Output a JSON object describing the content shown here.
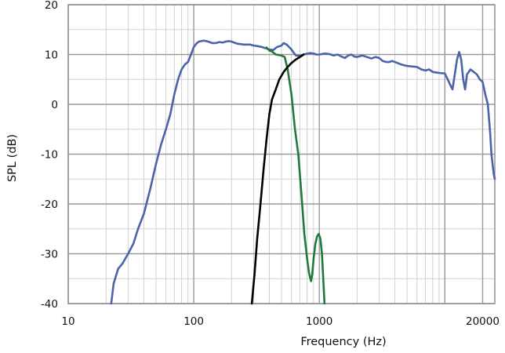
{
  "chart_data": {
    "type": "line",
    "xlabel": "Frequency (Hz)",
    "ylabel": "SPL (dB)",
    "x_scale": "log",
    "xlim": [
      10,
      25000
    ],
    "ylim": [
      -40,
      20
    ],
    "x_ticks": [
      {
        "value": 10,
        "label": "10"
      },
      {
        "value": 100,
        "label": "100"
      },
      {
        "value": 1000,
        "label": "1000"
      },
      {
        "value": 20000,
        "label": "20000"
      }
    ],
    "y_ticks": [
      {
        "value": 20,
        "label": "20"
      },
      {
        "value": 10,
        "label": "10"
      },
      {
        "value": 0,
        "label": "0"
      },
      {
        "value": -10,
        "label": "-10"
      },
      {
        "value": -20,
        "label": "-20"
      },
      {
        "value": -30,
        "label": "-30"
      },
      {
        "value": -40,
        "label": "-40"
      }
    ],
    "grid": true,
    "series": [
      {
        "color": "#4a64a8",
        "points": [
          [
            22,
            -40
          ],
          [
            23,
            -36
          ],
          [
            25,
            -33
          ],
          [
            27,
            -32
          ],
          [
            30,
            -30
          ],
          [
            33,
            -28
          ],
          [
            36,
            -25
          ],
          [
            40,
            -22
          ],
          [
            45,
            -17
          ],
          [
            50,
            -12
          ],
          [
            55,
            -8
          ],
          [
            60,
            -5
          ],
          [
            65,
            -2
          ],
          [
            70,
            2
          ],
          [
            75,
            5
          ],
          [
            80,
            7
          ],
          [
            85,
            8
          ],
          [
            90,
            8.5
          ],
          [
            95,
            10
          ],
          [
            100,
            11.5
          ],
          [
            105,
            12.2
          ],
          [
            110,
            12.6
          ],
          [
            120,
            12.8
          ],
          [
            130,
            12.6
          ],
          [
            140,
            12.3
          ],
          [
            150,
            12.3
          ],
          [
            160,
            12.5
          ],
          [
            170,
            12.4
          ],
          [
            180,
            12.6
          ],
          [
            190,
            12.7
          ],
          [
            200,
            12.6
          ],
          [
            220,
            12.2
          ],
          [
            250,
            12
          ],
          [
            280,
            12
          ],
          [
            300,
            11.8
          ],
          [
            320,
            11.7
          ],
          [
            350,
            11.5
          ],
          [
            380,
            11.2
          ],
          [
            400,
            11
          ],
          [
            430,
            10.9
          ],
          [
            460,
            11.5
          ],
          [
            500,
            11.8
          ],
          [
            520,
            12.3
          ],
          [
            550,
            12
          ],
          [
            600,
            11
          ],
          [
            650,
            9.8
          ],
          [
            700,
            9.7
          ],
          [
            750,
            10
          ],
          [
            800,
            10.2
          ],
          [
            850,
            10.3
          ],
          [
            900,
            10.2
          ],
          [
            950,
            10
          ],
          [
            1000,
            10
          ],
          [
            1100,
            10.2
          ],
          [
            1200,
            10.1
          ],
          [
            1300,
            9.8
          ],
          [
            1400,
            10
          ],
          [
            1500,
            9.6
          ],
          [
            1600,
            9.3
          ],
          [
            1700,
            9.8
          ],
          [
            1800,
            10
          ],
          [
            1900,
            9.6
          ],
          [
            2000,
            9.5
          ],
          [
            2200,
            9.8
          ],
          [
            2400,
            9.5
          ],
          [
            2600,
            9.2
          ],
          [
            2800,
            9.5
          ],
          [
            3000,
            9.3
          ],
          [
            3200,
            8.7
          ],
          [
            3400,
            8.5
          ],
          [
            3600,
            8.5
          ],
          [
            3800,
            8.7
          ],
          [
            4000,
            8.5
          ],
          [
            4500,
            8
          ],
          [
            5000,
            7.7
          ],
          [
            5500,
            7.6
          ],
          [
            6000,
            7.5
          ],
          [
            6500,
            7
          ],
          [
            7000,
            6.8
          ],
          [
            7500,
            7
          ],
          [
            8000,
            6.5
          ],
          [
            9000,
            6.3
          ],
          [
            10000,
            6.2
          ],
          [
            11000,
            4
          ],
          [
            11500,
            3
          ],
          [
            12000,
            6
          ],
          [
            12500,
            9
          ],
          [
            13000,
            10.5
          ],
          [
            13500,
            9
          ],
          [
            14000,
            5
          ],
          [
            14500,
            3
          ],
          [
            15000,
            6
          ],
          [
            16000,
            7
          ],
          [
            17000,
            6.5
          ],
          [
            18000,
            6
          ],
          [
            19000,
            5
          ],
          [
            20000,
            4.5
          ],
          [
            21000,
            2
          ],
          [
            22000,
            0
          ],
          [
            22500,
            -3
          ],
          [
            23000,
            -6
          ],
          [
            23500,
            -10
          ],
          [
            24000,
            -12
          ],
          [
            24500,
            -14
          ],
          [
            25000,
            -15
          ]
        ]
      },
      {
        "color": "#1e7a3a",
        "points": [
          [
            380,
            11.4
          ],
          [
            400,
            10.8
          ],
          [
            420,
            10.6
          ],
          [
            450,
            10
          ],
          [
            500,
            9.8
          ],
          [
            530,
            9.5
          ],
          [
            560,
            7
          ],
          [
            600,
            2
          ],
          [
            640,
            -5
          ],
          [
            680,
            -10
          ],
          [
            720,
            -18
          ],
          [
            760,
            -26
          ],
          [
            800,
            -31
          ],
          [
            830,
            -34
          ],
          [
            860,
            -35.5
          ],
          [
            880,
            -34
          ],
          [
            900,
            -31
          ],
          [
            930,
            -28
          ],
          [
            960,
            -26.5
          ],
          [
            990,
            -26
          ],
          [
            1020,
            -27
          ],
          [
            1050,
            -30
          ],
          [
            1080,
            -36
          ],
          [
            1100,
            -40
          ]
        ]
      },
      {
        "color": "#000000",
        "points": [
          [
            290,
            -40
          ],
          [
            305,
            -34
          ],
          [
            320,
            -27
          ],
          [
            340,
            -20
          ],
          [
            360,
            -13
          ],
          [
            380,
            -7
          ],
          [
            400,
            -2
          ],
          [
            420,
            1
          ],
          [
            450,
            3
          ],
          [
            480,
            5
          ],
          [
            520,
            6.5
          ],
          [
            560,
            7.5
          ],
          [
            600,
            8.3
          ],
          [
            650,
            9
          ],
          [
            700,
            9.5
          ],
          [
            750,
            10
          ]
        ]
      }
    ]
  }
}
